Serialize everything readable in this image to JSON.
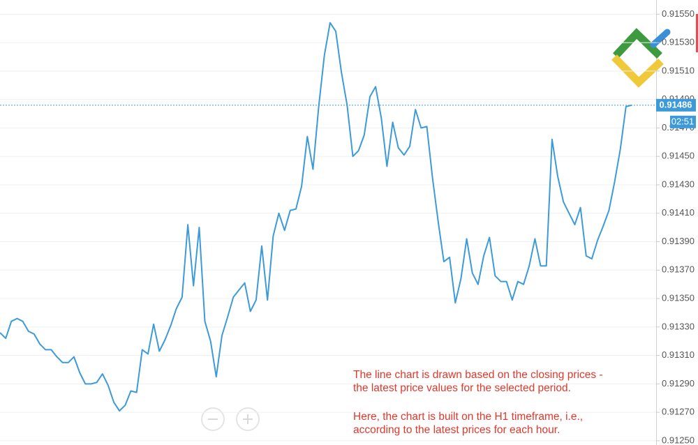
{
  "chart_data": {
    "type": "line",
    "values": [
      0.91326,
      0.91322,
      0.91334,
      0.91336,
      0.91334,
      0.91327,
      0.91325,
      0.91318,
      0.91314,
      0.91314,
      0.91309,
      0.91305,
      0.91305,
      0.91309,
      0.91298,
      0.9129,
      0.9129,
      0.91291,
      0.91297,
      0.91289,
      0.91277,
      0.91271,
      0.91275,
      0.91285,
      0.91284,
      0.91314,
      0.91311,
      0.91332,
      0.91313,
      0.91321,
      0.91331,
      0.91343,
      0.91351,
      0.91402,
      0.91359,
      0.914,
      0.91334,
      0.9132,
      0.91295,
      0.91324,
      0.91337,
      0.91351,
      0.91356,
      0.91361,
      0.91341,
      0.91349,
      0.91387,
      0.91349,
      0.91394,
      0.9141,
      0.91398,
      0.91412,
      0.91413,
      0.91429,
      0.91464,
      0.91441,
      0.91485,
      0.91521,
      0.91544,
      0.91538,
      0.91509,
      0.91486,
      0.9145,
      0.91454,
      0.91465,
      0.91492,
      0.91499,
      0.91477,
      0.91443,
      0.91474,
      0.91456,
      0.91451,
      0.91457,
      0.91483,
      0.9147,
      0.91471,
      0.91435,
      0.91404,
      0.91376,
      0.91379,
      0.91347,
      0.91364,
      0.91392,
      0.91368,
      0.9136,
      0.9138,
      0.91393,
      0.91366,
      0.91362,
      0.91362,
      0.91349,
      0.91362,
      0.9136,
      0.91373,
      0.91392,
      0.91373,
      0.91373,
      0.91462,
      0.91436,
      0.91418,
      0.9141,
      0.91402,
      0.91414,
      0.9138,
      0.91378,
      0.91391,
      0.91401,
      0.91412,
      0.91432,
      0.91455,
      0.91485,
      0.91486
    ],
    "color": "#3d9ad8",
    "ylim": [
      0.91247,
      0.9156
    ],
    "yticks": [
      {
        "value": 0.9125,
        "label": "0.91250"
      },
      {
        "value": 0.9127,
        "label": "0.91270"
      },
      {
        "value": 0.9129,
        "label": "0.91290"
      },
      {
        "value": 0.9131,
        "label": "0.91310"
      },
      {
        "value": 0.9133,
        "label": "0.91330"
      },
      {
        "value": 0.9135,
        "label": "0.91350"
      },
      {
        "value": 0.9137,
        "label": "0.91370"
      },
      {
        "value": 0.9139,
        "label": "0.91390"
      },
      {
        "value": 0.9141,
        "label": "0.91410"
      },
      {
        "value": 0.9143,
        "label": "0.91430"
      },
      {
        "value": 0.9145,
        "label": "0.91450"
      },
      {
        "value": 0.9147,
        "label": "0.91470"
      },
      {
        "value": 0.9149,
        "label": "0.91490"
      },
      {
        "value": 0.9151,
        "label": "0.91510"
      },
      {
        "value": 0.9153,
        "label": "0.91530"
      },
      {
        "value": 0.9155,
        "label": "0.91550"
      }
    ],
    "grid": true,
    "last_price": 0.91486,
    "timer": "02:51",
    "annotation": [
      "The line chart is drawn based on the closing prices -",
      "the latest price values for the selected period.",
      "Here, the chart is built on the H1 timeframe, i.e.,",
      "according to the latest prices for each hour."
    ]
  }
}
